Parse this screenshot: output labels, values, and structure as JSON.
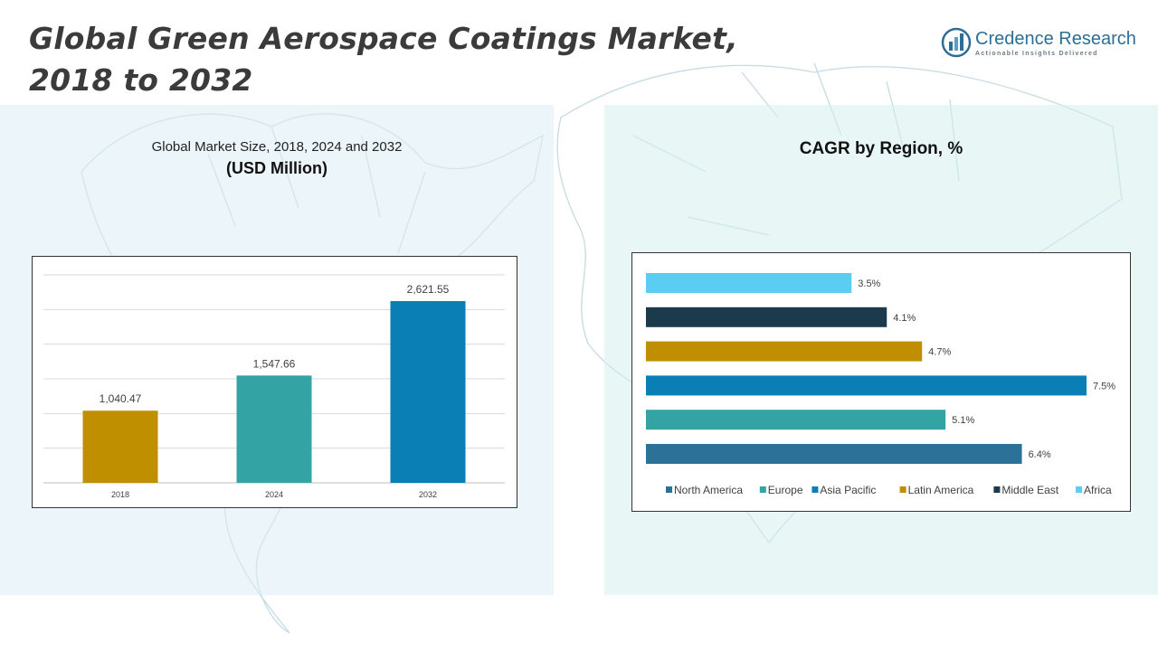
{
  "header": {
    "title_line1": "Global Green Aerospace Coatings Market,",
    "title_line2": "2018 to 2032"
  },
  "logo": {
    "name": "Credence Research",
    "tagline": "Actionable Insights Delivered",
    "icon": "bar-chart-logo-icon"
  },
  "left_panel": {
    "subtitle": "Global Market Size, 2018, 2024 and 2032",
    "unit": "(USD Million)"
  },
  "right_panel": {
    "title": "CAGR by Region, %"
  },
  "colors": {
    "title": "#3b3b3b",
    "gold": "#bf8f00",
    "teal": "#34a3a3",
    "blue": "#0a7fb5",
    "dark_blue": "#2c7298",
    "navy": "#1b3a4b",
    "light_blue": "#5bcdf2"
  },
  "chart_data": [
    {
      "type": "bar",
      "title": "Global Market Size, 2018, 2024 and 2032",
      "ylabel": "USD Million",
      "categories": [
        "2018",
        "2024",
        "2032"
      ],
      "values": [
        1040.47,
        1547.66,
        2621.55
      ],
      "value_labels": [
        "1,040.47",
        "1,547.66",
        "2,621.55"
      ],
      "colors": [
        "#bf8f00",
        "#34a3a3",
        "#0a7fb5"
      ],
      "ylim": [
        0,
        3000
      ],
      "grid": true
    },
    {
      "type": "bar",
      "orientation": "horizontal",
      "title": "CAGR by Region, %",
      "categories": [
        "North America",
        "Europe",
        "Asia Pacific",
        "Latin America",
        "Middle East",
        "Africa"
      ],
      "values": [
        6.4,
        5.1,
        7.5,
        4.7,
        4.1,
        3.5
      ],
      "value_labels": [
        "6.4%",
        "5.1%",
        "7.5%",
        "4.7%",
        "4.1%",
        "3.5%"
      ],
      "colors": [
        "#2c7298",
        "#34a3a3",
        "#0a7fb5",
        "#bf8f00",
        "#1b3a4b",
        "#5bcdf2"
      ],
      "xlim": [
        0,
        7.5
      ],
      "legend_position": "bottom"
    }
  ]
}
